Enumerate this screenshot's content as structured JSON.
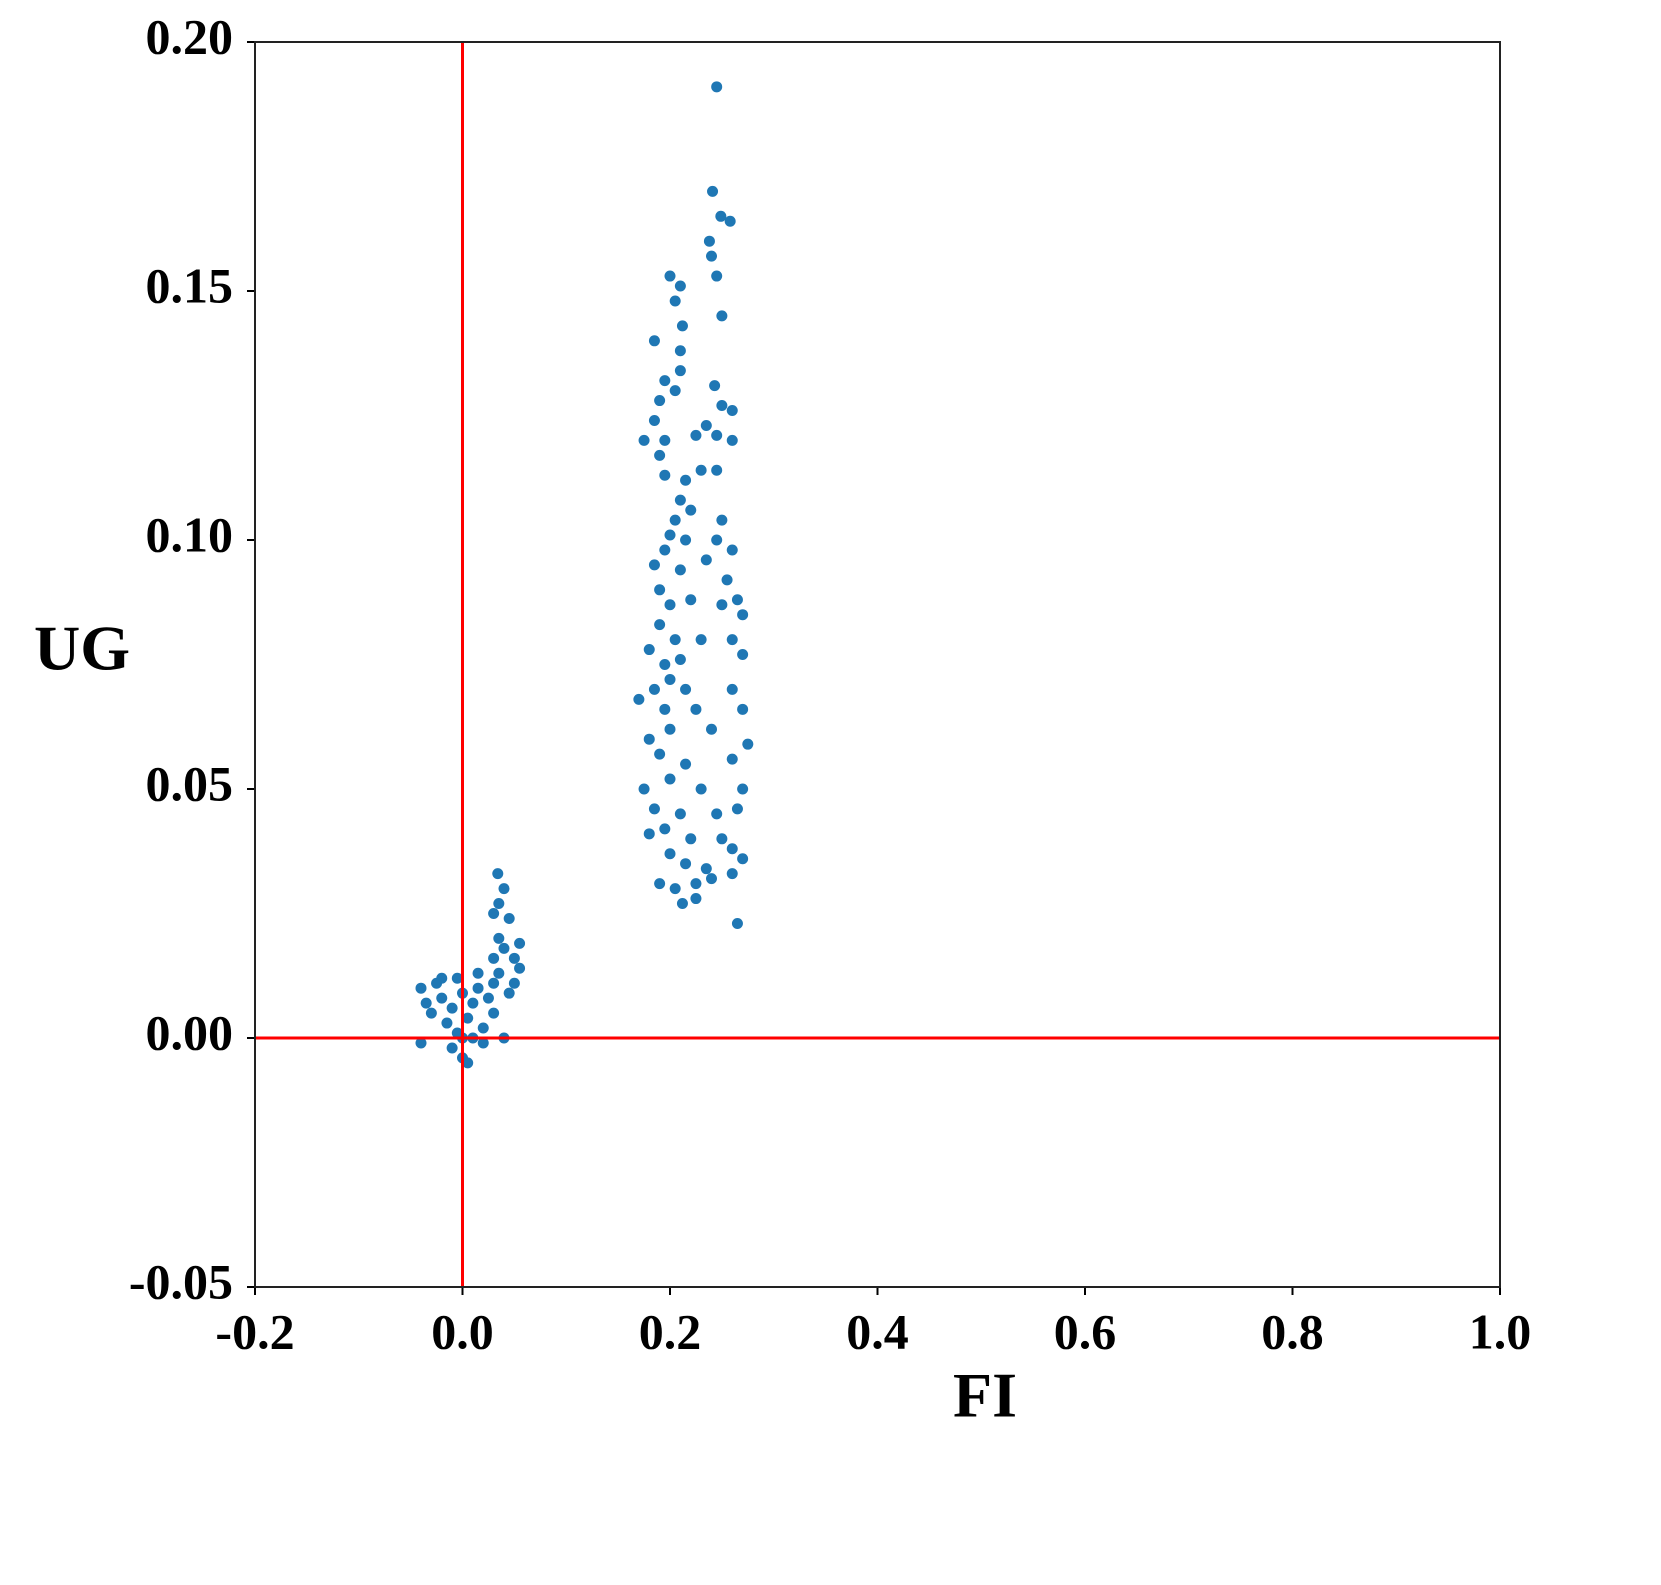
{
  "chart_data": {
    "type": "scatter",
    "xlabel": "FI",
    "ylabel": "UG",
    "xlim": [
      -0.2,
      1.0
    ],
    "ylim": [
      -0.05,
      0.2
    ],
    "xticks": [
      -0.2,
      {
        "value": 0,
        "label": "0.0"
      },
      0.2,
      0.4,
      0.6,
      0.8,
      {
        "value": 1.0,
        "label": "1.0"
      }
    ],
    "yticks": [
      {
        "value": -0.05,
        "label": "-0.05"
      },
      {
        "value": 0,
        "label": "0.00"
      },
      {
        "value": 0.05,
        "label": "0.05"
      },
      {
        "value": 0.1,
        "label": "0.10"
      },
      {
        "value": 0.15,
        "label": "0.15"
      },
      {
        "value": 0.2,
        "label": "0.20"
      }
    ],
    "grid": false,
    "vlines": [
      0
    ],
    "hlines": [
      0
    ],
    "line_color": "#ff0000",
    "series": [
      {
        "color": "#1f77b4",
        "x": [
          -0.04,
          -0.035,
          -0.03,
          -0.025,
          -0.02,
          -0.015,
          -0.01,
          -0.005,
          0.0,
          0.005,
          0.01,
          0.015,
          0.02,
          0.025,
          0.03,
          -0.01,
          0.0,
          0.005,
          -0.005,
          0.01,
          0.02,
          0.04,
          -0.04,
          0.03,
          0.035,
          0.03,
          0.035,
          0.03,
          0.035,
          0.04,
          0.034,
          0.045,
          0.04,
          0.05,
          0.055,
          0.055,
          0.045,
          0.05,
          -0.02,
          0.015,
          0.0,
          0.245,
          0.241,
          0.249,
          0.258,
          0.238,
          0.24,
          0.245,
          0.25,
          0.2,
          0.21,
          0.205,
          0.212,
          0.21,
          0.185,
          0.21,
          0.195,
          0.19,
          0.205,
          0.185,
          0.195,
          0.175,
          0.19,
          0.195,
          0.243,
          0.25,
          0.26,
          0.245,
          0.225,
          0.235,
          0.26,
          0.23,
          0.245,
          0.215,
          0.21,
          0.22,
          0.205,
          0.25,
          0.2,
          0.195,
          0.215,
          0.245,
          0.26,
          0.185,
          0.21,
          0.235,
          0.19,
          0.255,
          0.265,
          0.2,
          0.22,
          0.25,
          0.19,
          0.27,
          0.205,
          0.23,
          0.26,
          0.18,
          0.195,
          0.21,
          0.27,
          0.2,
          0.185,
          0.215,
          0.26,
          0.17,
          0.195,
          0.225,
          0.27,
          0.2,
          0.18,
          0.24,
          0.275,
          0.19,
          0.215,
          0.26,
          0.2,
          0.23,
          0.175,
          0.27,
          0.185,
          0.21,
          0.245,
          0.265,
          0.195,
          0.22,
          0.18,
          0.25,
          0.26,
          0.2,
          0.215,
          0.235,
          0.27,
          0.19,
          0.205,
          0.225,
          0.26,
          0.212,
          0.225,
          0.265,
          0.24
        ],
        "values": [
          0.01,
          0.007,
          0.005,
          0.011,
          0.008,
          0.003,
          0.006,
          0.012,
          0.009,
          0.004,
          0.007,
          0.01,
          0.002,
          0.008,
          0.011,
          -0.002,
          -0.004,
          -0.005,
          0.001,
          0.0,
          -0.001,
          0.0,
          -0.001,
          0.005,
          0.013,
          0.016,
          0.02,
          0.025,
          0.027,
          0.03,
          0.033,
          0.024,
          0.018,
          0.016,
          0.014,
          0.019,
          0.009,
          0.011,
          0.012,
          0.013,
          0.0,
          0.191,
          0.17,
          0.165,
          0.164,
          0.16,
          0.157,
          0.153,
          0.145,
          0.153,
          0.151,
          0.148,
          0.143,
          0.138,
          0.14,
          0.134,
          0.132,
          0.128,
          0.13,
          0.124,
          0.12,
          0.12,
          0.117,
          0.113,
          0.131,
          0.127,
          0.126,
          0.121,
          0.121,
          0.123,
          0.12,
          0.114,
          0.114,
          0.112,
          0.108,
          0.106,
          0.104,
          0.104,
          0.101,
          0.098,
          0.1,
          0.1,
          0.098,
          0.095,
          0.094,
          0.096,
          0.09,
          0.092,
          0.088,
          0.087,
          0.088,
          0.087,
          0.083,
          0.085,
          0.08,
          0.08,
          0.08,
          0.078,
          0.075,
          0.076,
          0.077,
          0.072,
          0.07,
          0.07,
          0.07,
          0.068,
          0.066,
          0.066,
          0.066,
          0.062,
          0.06,
          0.062,
          0.059,
          0.057,
          0.055,
          0.056,
          0.052,
          0.05,
          0.05,
          0.05,
          0.046,
          0.045,
          0.045,
          0.046,
          0.042,
          0.04,
          0.041,
          0.04,
          0.038,
          0.037,
          0.035,
          0.034,
          0.036,
          0.031,
          0.03,
          0.031,
          0.033,
          0.027,
          0.028,
          0.023,
          0.032
        ]
      }
    ]
  }
}
